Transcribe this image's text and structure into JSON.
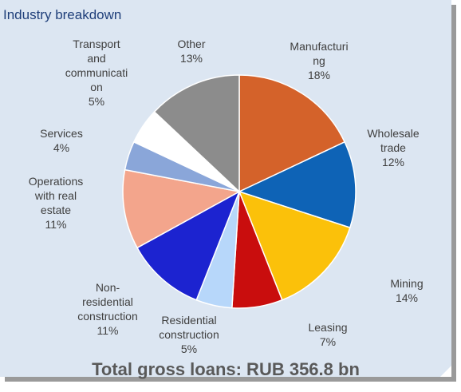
{
  "title": "Industry breakdown",
  "total": "Total gross loans: RUB 356.8 bn",
  "chart_data": {
    "type": "pie",
    "title": "Industry breakdown",
    "slices": [
      {
        "label": [
          "Manufacturi",
          "ng"
        ],
        "pct": "18%",
        "value": 18,
        "color": "#d4622a"
      },
      {
        "label": [
          "Wholesale",
          "trade"
        ],
        "pct": "12%",
        "value": 12,
        "color": "#0e63b6"
      },
      {
        "label": [
          "Mining"
        ],
        "pct": "14%",
        "value": 14,
        "color": "#fbc10a"
      },
      {
        "label": [
          "Leasing"
        ],
        "pct": "7%",
        "value": 7,
        "color": "#c90d0d"
      },
      {
        "label": [
          "Residential",
          "construction"
        ],
        "pct": "5%",
        "value": 5,
        "color": "#b7d7fa"
      },
      {
        "label": [
          "Non-",
          "residential",
          "construction"
        ],
        "pct": "11%",
        "value": 11,
        "color": "#1c23d0"
      },
      {
        "label": [
          "Operations",
          "with real",
          "estate"
        ],
        "pct": "11%",
        "value": 11,
        "color": "#f3a58c"
      },
      {
        "label": [
          "Services"
        ],
        "pct": "4%",
        "value": 4,
        "color": "#8aa6d9"
      },
      {
        "label": [
          "Transport",
          "and",
          "communicati",
          "on"
        ],
        "pct": "5%",
        "value": 5,
        "color": "#ffffff"
      },
      {
        "label": [
          "Other"
        ],
        "pct": "13%",
        "value": 13,
        "color": "#8c8c8c"
      }
    ]
  }
}
